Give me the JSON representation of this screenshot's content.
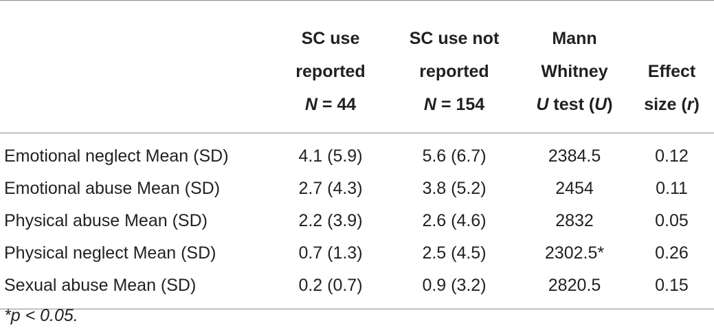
{
  "table": {
    "headers": {
      "col1": {
        "line1": "SC use",
        "line2": "reported",
        "n_label": "N",
        "n_value": " = 44"
      },
      "col2": {
        "line1": "SC use not",
        "line2": "reported",
        "n_label": "N",
        "n_value": " = 154"
      },
      "col3": {
        "line1": "Mann",
        "line2": "Whitney",
        "u_label": "U",
        "u_mid": " test (",
        "u_sym": "U",
        "u_close": ")"
      },
      "col4": {
        "line1": "Effect",
        "line2_pre": "size (",
        "r_sym": "r",
        "line2_post": ")"
      }
    },
    "rows": [
      {
        "label": "Emotional neglect Mean (SD)",
        "reported": "4.1 (5.9)",
        "not_reported": "5.6 (6.7)",
        "u": "2384.5",
        "r": "0.12"
      },
      {
        "label": "Emotional abuse Mean (SD)",
        "reported": "2.7 (4.3)",
        "not_reported": "3.8 (5.2)",
        "u": "2454",
        "r": "0.11"
      },
      {
        "label": "Physical abuse Mean (SD)",
        "reported": "2.2 (3.9)",
        "not_reported": "2.6 (4.6)",
        "u": "2832",
        "r": "0.05"
      },
      {
        "label": "Physical neglect Mean (SD)",
        "reported": "0.7 (1.3)",
        "not_reported": "2.5 (4.5)",
        "u": "2302.5*",
        "r": "0.26"
      },
      {
        "label": "Sexual abuse Mean (SD)",
        "reported": "0.2 (0.7)",
        "not_reported": "0.9 (3.2)",
        "u": "2820.5",
        "r": "0.15"
      }
    ]
  },
  "footnote": "*p < 0.05."
}
